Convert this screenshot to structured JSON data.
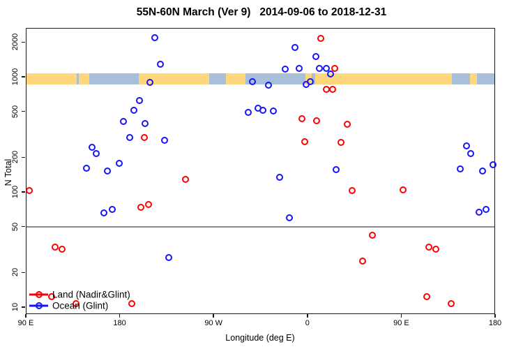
{
  "chart_data": {
    "type": "scatter",
    "title": "55N-60N March (Ver 9)   2014-09-06 to 2018-12-31",
    "xlabel": "Longitude (deg E)",
    "ylabel": "N Total",
    "x_axis": {
      "note": "longitude axis wraps eastward: 90E -> 180 -> 90W -> 0 -> 90E -> 180 (axis coord 90..540 deg)",
      "range_deg": [
        90,
        540
      ],
      "ticks": [
        {
          "deg": 90,
          "label": "90 E"
        },
        {
          "deg": 180,
          "label": "180"
        },
        {
          "deg": 270,
          "label": "90 W"
        },
        {
          "deg": 360,
          "label": "0"
        },
        {
          "deg": 450,
          "label": "90 E"
        },
        {
          "deg": 540,
          "label": "180"
        }
      ]
    },
    "y_axis": {
      "scale": "log",
      "range": [
        9,
        2800
      ],
      "ticks": [
        10,
        20,
        50,
        100,
        200,
        500,
        1000,
        2000
      ]
    },
    "reference_line_y": 50,
    "reference_line_color": "#8c8c8c",
    "map_band": {
      "comment": "coastline strip for 55N-60N drawn across the plot near N=1000",
      "value_range": [
        860,
        1070
      ],
      "ocean_color": "#A8BFD9",
      "land_color": "#FDD77E",
      "land_segments_deg": [
        [
          90,
          138.5
        ],
        [
          141,
          151
        ],
        [
          198,
          265.8
        ],
        [
          281.9,
          300.6
        ],
        [
          358.1,
          364.2
        ],
        [
          367.5,
          498.5
        ],
        [
          515.9,
          522.6
        ]
      ]
    },
    "series": [
      {
        "name": "Land (Nadir&Glint)",
        "color": "#FF0000",
        "points": [
          [
            93.3,
            103
          ],
          [
            114.7,
            12.4
          ],
          [
            118.1,
            33
          ],
          [
            124.8,
            32
          ],
          [
            138.1,
            10.7
          ],
          [
            191.6,
            10.7
          ],
          [
            200.3,
            74
          ],
          [
            203.7,
            297
          ],
          [
            207.7,
            78
          ],
          [
            243.1,
            129
          ],
          [
            354.8,
            430
          ],
          [
            357.4,
            275
          ],
          [
            368.8,
            415
          ],
          [
            372.8,
            2150
          ],
          [
            378.2,
            775
          ],
          [
            384.2,
            775
          ],
          [
            386.2,
            1180
          ],
          [
            392.2,
            268
          ],
          [
            398.2,
            385
          ],
          [
            402.9,
            103
          ],
          [
            412.9,
            25
          ],
          [
            422.3,
            42
          ],
          [
            451.7,
            104
          ],
          [
            474.5,
            12.4
          ],
          [
            476.5,
            33
          ],
          [
            483.2,
            32
          ],
          [
            497.9,
            10.7
          ]
        ]
      },
      {
        "name": "Ocean (Glint)",
        "color": "#1414FF",
        "points": [
          [
            148.2,
            160
          ],
          [
            153.5,
            245
          ],
          [
            157.5,
            215
          ],
          [
            164.9,
            66
          ],
          [
            168.2,
            152
          ],
          [
            172.9,
            71
          ],
          [
            179.6,
            178
          ],
          [
            183.6,
            410
          ],
          [
            189.6,
            295
          ],
          [
            193.6,
            515
          ],
          [
            199.0,
            620
          ],
          [
            204.3,
            390
          ],
          [
            209.0,
            900
          ],
          [
            213.7,
            2200
          ],
          [
            219.0,
            1290
          ],
          [
            223.1,
            280
          ],
          [
            227.1,
            27
          ],
          [
            303.3,
            490
          ],
          [
            307.3,
            905
          ],
          [
            312.7,
            530
          ],
          [
            317.4,
            515
          ],
          [
            322.7,
            845
          ],
          [
            327.4,
            508
          ],
          [
            333.4,
            134
          ],
          [
            338.7,
            1165
          ],
          [
            342.7,
            60
          ],
          [
            348.1,
            1800
          ],
          [
            352.1,
            1180
          ],
          [
            358.8,
            855
          ],
          [
            362.8,
            905
          ],
          [
            368.2,
            1500
          ],
          [
            371.5,
            1180
          ],
          [
            378.2,
            1180
          ],
          [
            382.2,
            1055
          ],
          [
            387.6,
            157
          ],
          [
            506.5,
            158
          ],
          [
            512.6,
            250
          ],
          [
            516.6,
            215
          ],
          [
            524.6,
            67
          ],
          [
            527.9,
            152
          ],
          [
            531.3,
            71
          ],
          [
            538.0,
            172
          ]
        ]
      }
    ]
  },
  "legend": {
    "items": [
      {
        "label": "Land (Nadir&Glint)",
        "color": "#FF0000"
      },
      {
        "label": "Ocean (Glint)",
        "color": "#1414FF"
      }
    ]
  }
}
